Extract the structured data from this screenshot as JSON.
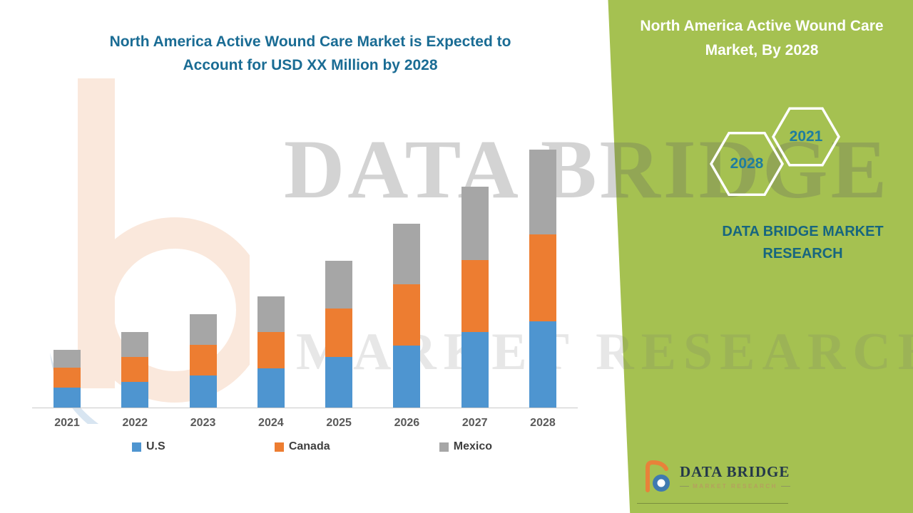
{
  "header": {
    "title_line1": "North America Active Wound Care Market is Expected to",
    "title_line2": "Account for USD XX Million by 2028",
    "title_color": "#1a6c94"
  },
  "side_panel": {
    "bg_color": "#a5c151",
    "heading_line1": "North America Active Wound Care",
    "heading_line2": "Market, By 2028",
    "hexagons": [
      {
        "label": "2028"
      },
      {
        "label": "2021"
      }
    ],
    "brand_line1": "DATA BRIDGE MARKET",
    "brand_line2": "RESEARCH",
    "accent_color": "#1e7da0"
  },
  "watermark": {
    "line1": "DATA BRIDGE",
    "line2": "MARKET RESEARCH"
  },
  "footer_logo": {
    "name": "DATA BRIDGE",
    "subtitle": "MARKET RESEARCH"
  },
  "chart_data": {
    "type": "bar",
    "stacked": true,
    "title": "North America Active Wound Care Market is Expected to Account for USD XX Million by 2028",
    "categories": [
      "2021",
      "2022",
      "2023",
      "2024",
      "2025",
      "2026",
      "2027",
      "2028"
    ],
    "series": [
      {
        "name": "U.S",
        "color": "#4e95d0",
        "values": [
          28,
          36,
          45,
          55,
          71,
          87,
          106,
          121
        ]
      },
      {
        "name": "Canada",
        "color": "#ed7d31",
        "values": [
          28,
          35,
          43,
          51,
          68,
          86,
          101,
          122
        ]
      },
      {
        "name": "Mexico",
        "color": "#a6a6a6",
        "values": [
          25,
          35,
          43,
          50,
          67,
          85,
          103,
          119
        ]
      }
    ],
    "stacked_totals": [
      81,
      106,
      131,
      156,
      206,
      258,
      310,
      362
    ],
    "xlabel": "",
    "ylabel": "",
    "y_axis_visible": false,
    "value_labels_visible": false,
    "grid": false,
    "legend_position": "bottom",
    "note": "Y-axis scale not shown in source (USD XX Million); series values are relative heights"
  }
}
